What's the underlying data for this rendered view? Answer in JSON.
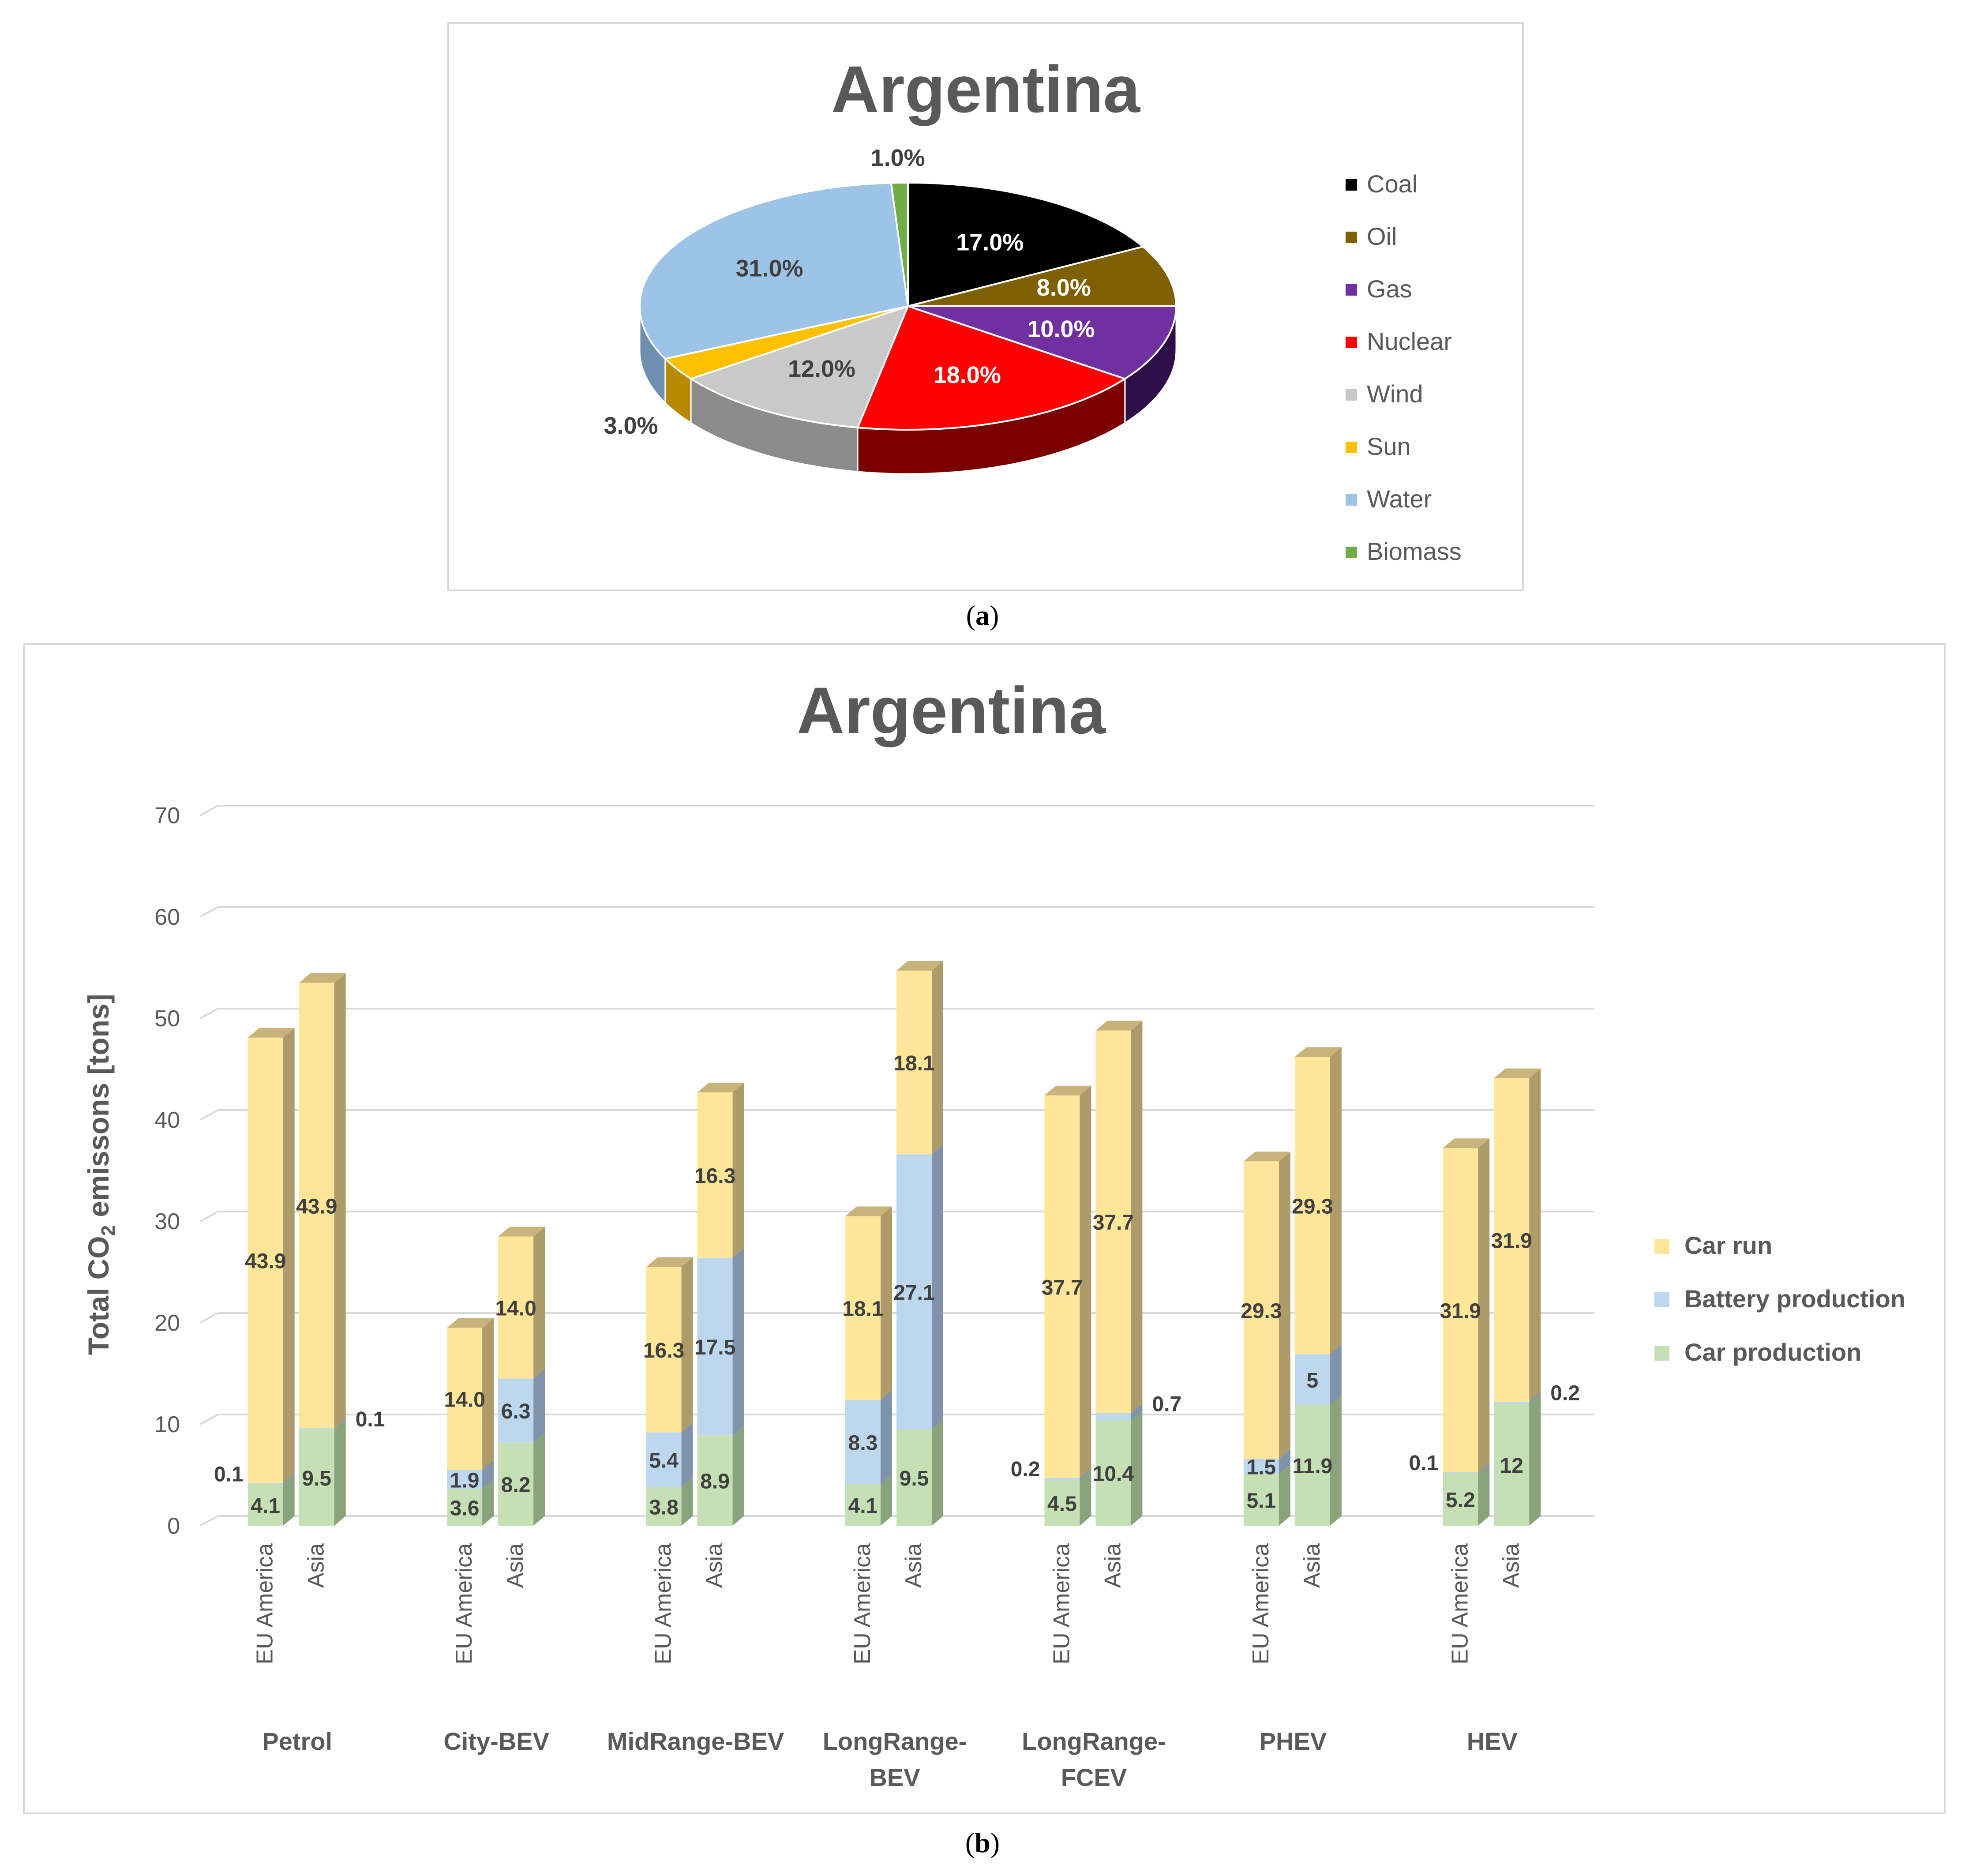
{
  "panel_a": {
    "caption_left": "(",
    "caption_letter": "a",
    "caption_right": ")"
  },
  "panel_b": {
    "caption_left": "(",
    "caption_letter": "b",
    "caption_right": ")"
  },
  "chart_data": [
    {
      "type": "pie",
      "title": "Argentina",
      "style": "3d",
      "legend_position": "right",
      "slices": [
        {
          "label": "Coal",
          "value": 17.0,
          "text": "17.0%",
          "color": "#000000",
          "side": "#000000",
          "label_color": "#ffffff"
        },
        {
          "label": "Oil",
          "value": 8.0,
          "text": "8.0%",
          "color": "#7f6000",
          "side": "#4d3a00",
          "label_color": "#ffffff"
        },
        {
          "label": "Gas",
          "value": 10.0,
          "text": "10.0%",
          "color": "#7030a0",
          "side": "#2e0f4a",
          "label_color": "#ffffff"
        },
        {
          "label": "Nuclear",
          "value": 18.0,
          "text": "18.0%",
          "color": "#ff0000",
          "side": "#7a0000",
          "label_color": "#ffffff"
        },
        {
          "label": "Wind",
          "value": 12.0,
          "text": "12.0%",
          "color": "#c9c9c9",
          "side": "#8c8c8c",
          "label_color": "#404040"
        },
        {
          "label": "Sun",
          "value": 3.0,
          "text": "3.0%",
          "color": "#ffc000",
          "side": "#b88a00",
          "label_color": "#404040"
        },
        {
          "label": "Water",
          "value": 31.0,
          "text": "31.0%",
          "color": "#9dc3e6",
          "side": "#6f8fb0",
          "label_color": "#404040"
        },
        {
          "label": "Biomass",
          "value": 1.0,
          "text": "1.0%",
          "color": "#70ad47",
          "side": "#4a7a2e",
          "label_color": "#404040"
        }
      ]
    },
    {
      "type": "bar",
      "stacked": true,
      "style": "3d",
      "title": "Argentina",
      "ylabel_prefix": "Total CO",
      "ylabel_subscript": "2",
      "ylabel_suffix": " emissons [tons]",
      "ylim": [
        0,
        70
      ],
      "yticks": [
        0,
        10,
        20,
        30,
        40,
        50,
        60,
        70
      ],
      "grid": true,
      "legend_position": "right",
      "groups": [
        "Petrol",
        "City-BEV",
        "MidRange-BEV",
        "LongRange-BEV",
        "LongRange-FCEV",
        "PHEV",
        "HEV"
      ],
      "group_label_lines": [
        [
          "Petrol"
        ],
        [
          "City-BEV"
        ],
        [
          "MidRange-BEV"
        ],
        [
          "LongRange-",
          "BEV"
        ],
        [
          "LongRange-",
          "FCEV"
        ],
        [
          "PHEV"
        ],
        [
          "HEV"
        ]
      ],
      "subcategories": [
        "EU America",
        "Asia"
      ],
      "series": [
        {
          "name": "Car production",
          "color": "#c5e0b4",
          "side": "#8aa37c",
          "top": "#a9c39a",
          "values": [
            [
              4.1,
              9.5
            ],
            [
              3.6,
              8.2
            ],
            [
              3.8,
              8.9
            ],
            [
              4.1,
              9.5
            ],
            [
              4.5,
              10.4
            ],
            [
              5.1,
              11.9
            ],
            [
              5.2,
              12
            ]
          ],
          "labels": [
            [
              "4.1",
              "9.5"
            ],
            [
              "3.6",
              "8.2"
            ],
            [
              "3.8",
              "8.9"
            ],
            [
              "4.1",
              "9.5"
            ],
            [
              "4.5",
              "10.4"
            ],
            [
              "5.1",
              "11.9"
            ],
            [
              "5.2",
              "12"
            ]
          ]
        },
        {
          "name": "Battery production",
          "color": "#bdd7ee",
          "side": "#7f93aa",
          "top": "#9fb6cc",
          "values": [
            [
              0.1,
              0.1
            ],
            [
              1.9,
              6.3
            ],
            [
              5.4,
              17.5
            ],
            [
              8.3,
              27.1
            ],
            [
              0.2,
              0.7
            ],
            [
              1.5,
              5
            ],
            [
              0.1,
              0.2
            ]
          ],
          "labels": [
            [
              "0.1",
              "0.1"
            ],
            [
              "1.9",
              "6.3"
            ],
            [
              "5.4",
              "17.5"
            ],
            [
              "8.3",
              "27.1"
            ],
            [
              "0.2",
              "0.7"
            ],
            [
              "1.5",
              "5"
            ],
            [
              "0.1",
              "0.2"
            ]
          ]
        },
        {
          "name": "Car run",
          "color": "#ffe699",
          "side": "#ad9c6a",
          "top": "#c8b37a",
          "values": [
            [
              43.9,
              43.9
            ],
            [
              14.0,
              14.0
            ],
            [
              16.3,
              16.3
            ],
            [
              18.1,
              18.1
            ],
            [
              37.7,
              37.7
            ],
            [
              29.3,
              29.3
            ],
            [
              31.9,
              31.9
            ]
          ],
          "labels": [
            [
              "43.9",
              "43.9"
            ],
            [
              "14.0",
              "14.0"
            ],
            [
              "16.3",
              "16.3"
            ],
            [
              "18.1",
              "18.1"
            ],
            [
              "37.7",
              "37.7"
            ],
            [
              "29.3",
              "29.3"
            ],
            [
              "31.9",
              "31.9"
            ]
          ]
        }
      ]
    }
  ]
}
